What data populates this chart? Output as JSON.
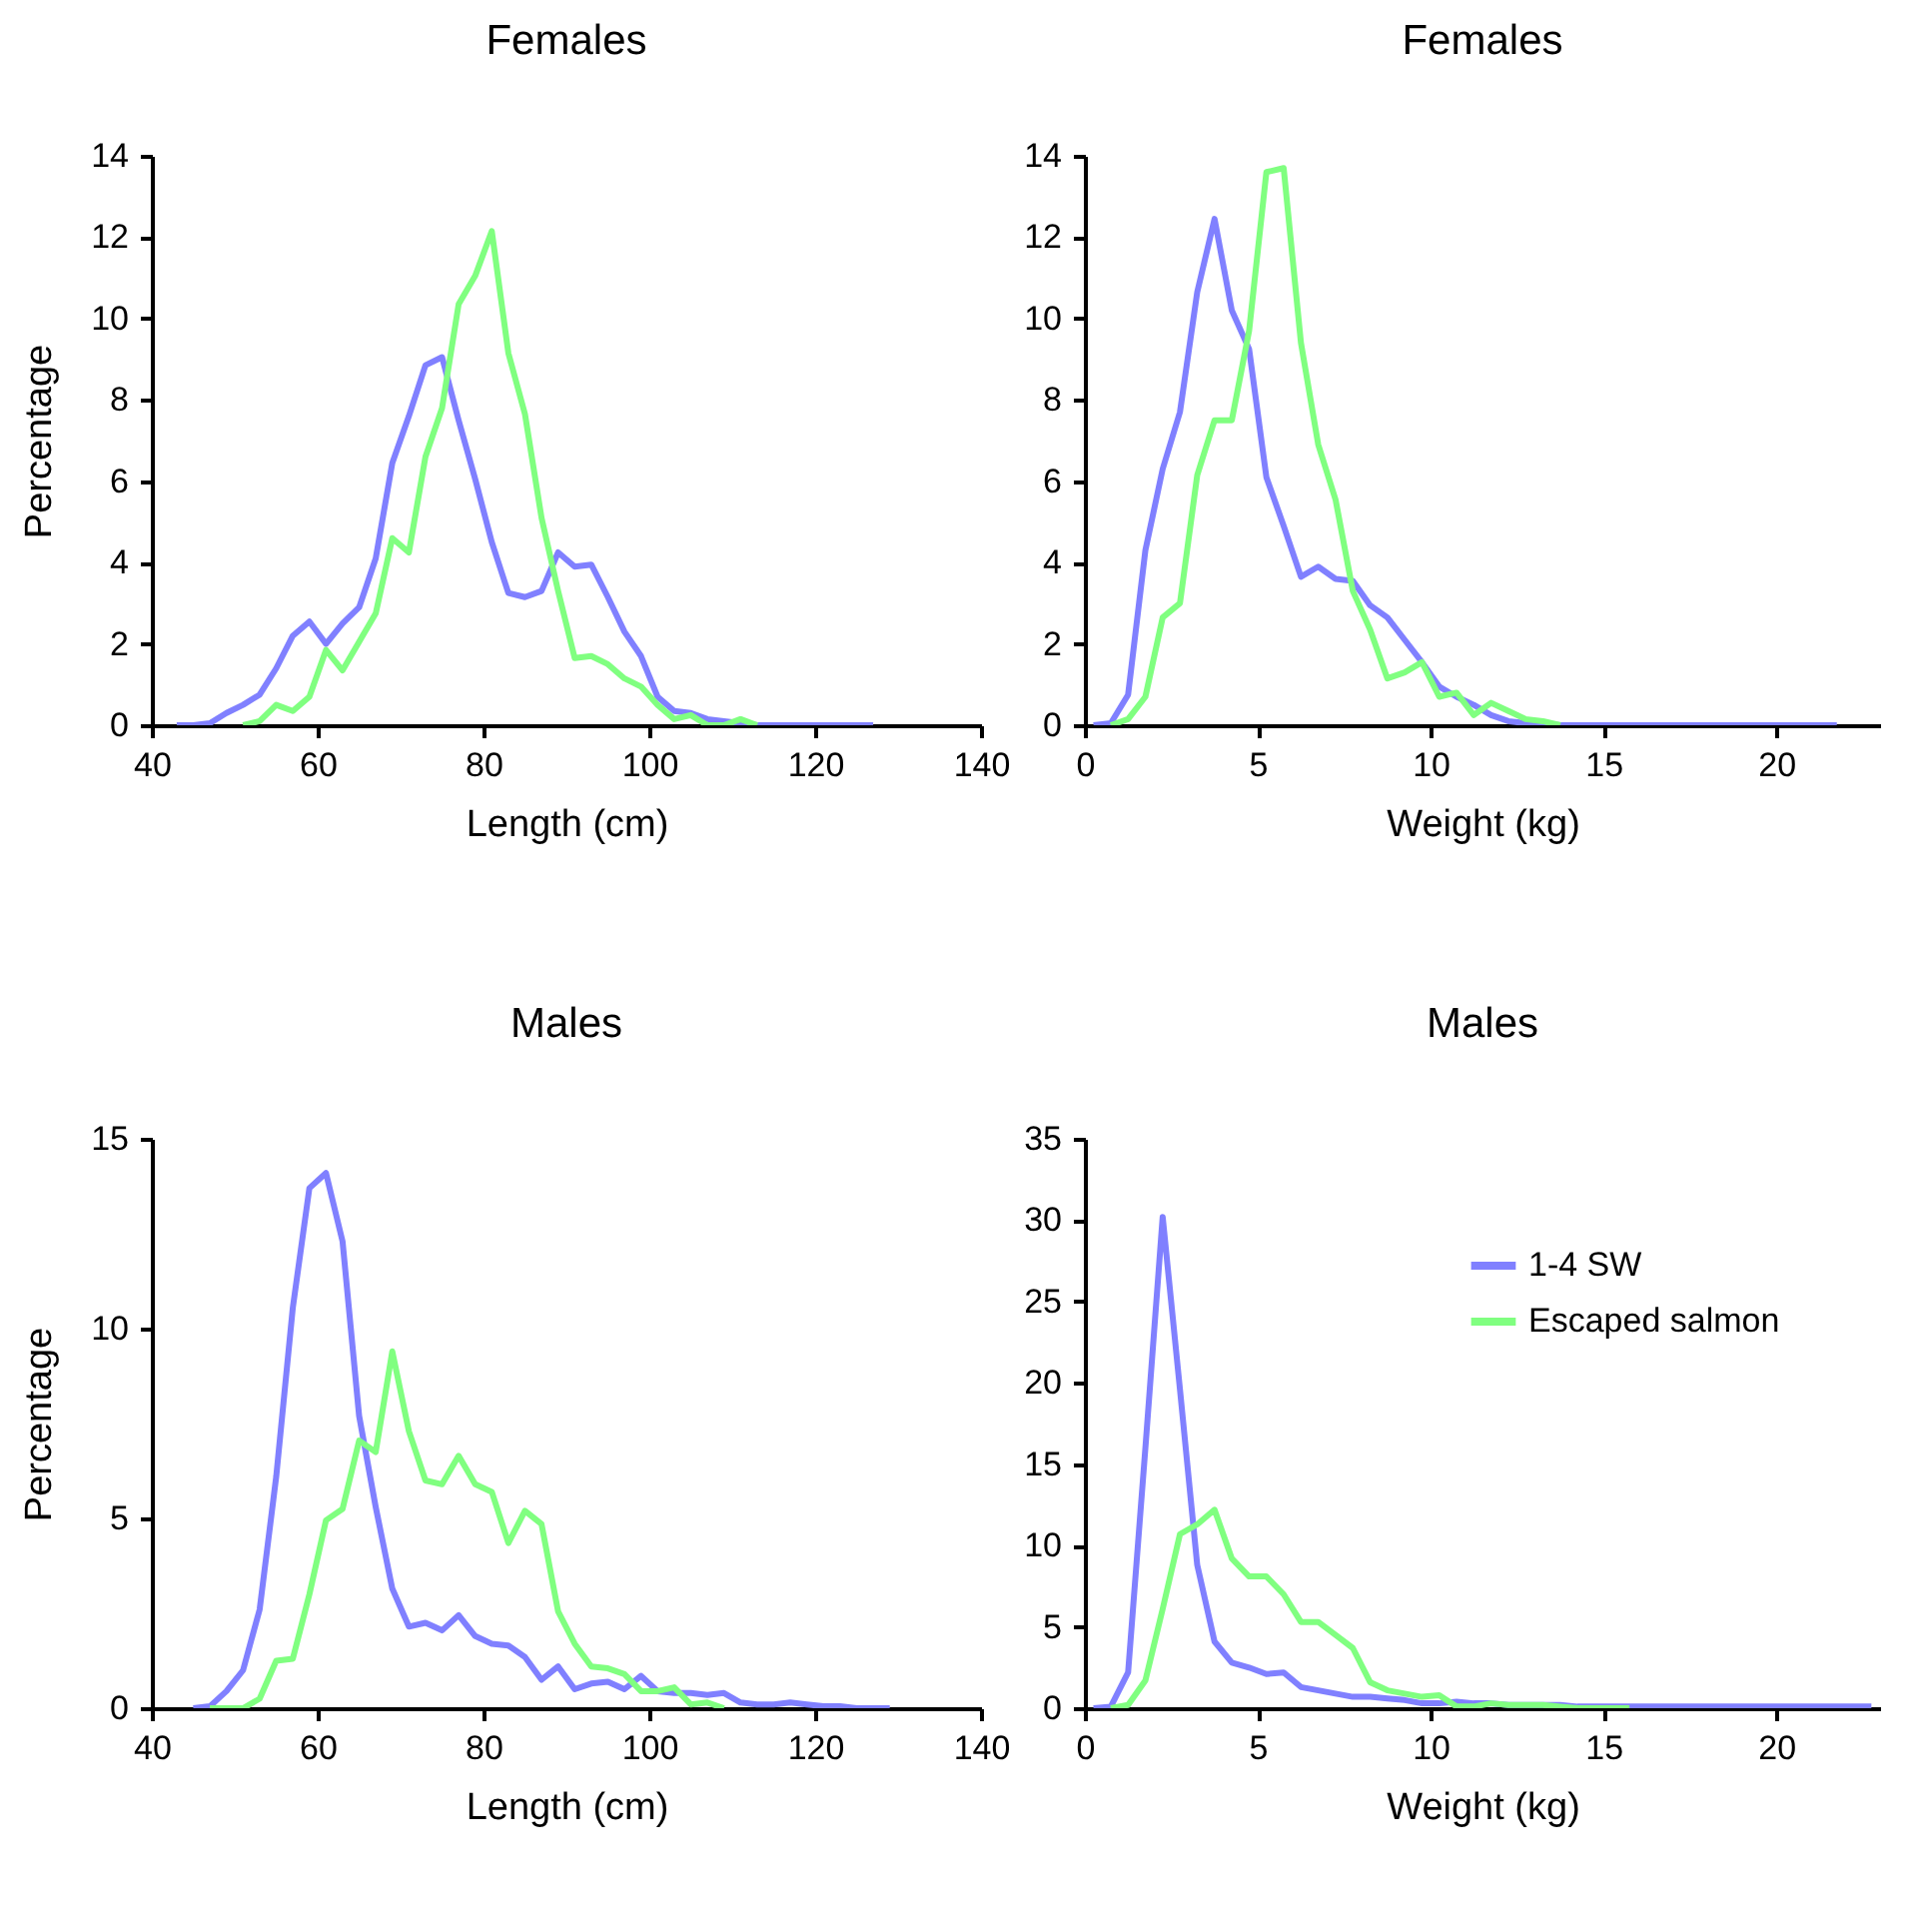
{
  "chart_data": [
    {
      "type": "line",
      "title": "Females",
      "xlabel": "Length (cm)",
      "ylabel": "Percentage",
      "xlim": [
        40,
        140
      ],
      "xticks": [
        40,
        60,
        80,
        100,
        120,
        140
      ],
      "ylim": [
        0,
        14
      ],
      "yticks": [
        0,
        2,
        4,
        6,
        8,
        10,
        12,
        14
      ],
      "series": [
        {
          "color": "#8080ff",
          "x": [
            43,
            45,
            47,
            49,
            51,
            53,
            55,
            57,
            59,
            61,
            63,
            65,
            67,
            69,
            71,
            73,
            75,
            77,
            79,
            81,
            83,
            85,
            87,
            89,
            91,
            93,
            95,
            97,
            99,
            101,
            103,
            105,
            107,
            109,
            111,
            113,
            115,
            117,
            119,
            121,
            123,
            125,
            127
          ],
          "values": [
            0,
            0,
            0.05,
            0.3,
            0.5,
            0.75,
            1.4,
            2.2,
            2.55,
            2.0,
            2.5,
            2.9,
            4.1,
            6.45,
            7.6,
            8.85,
            9.05,
            7.5,
            6.05,
            4.5,
            3.25,
            3.15,
            3.3,
            4.25,
            3.9,
            3.95,
            3.15,
            2.3,
            1.7,
            0.7,
            0.35,
            0.3,
            0.15,
            0.1,
            0.05,
            0,
            0,
            0,
            0,
            0,
            0,
            0,
            0
          ]
        },
        {
          "color": "#80ff80",
          "x": [
            51,
            53,
            55,
            57,
            59,
            61,
            63,
            65,
            67,
            69,
            71,
            73,
            75,
            77,
            79,
            81,
            83,
            85,
            87,
            89,
            91,
            93,
            95,
            97,
            99,
            101,
            103,
            105,
            107,
            109,
            111,
            113
          ],
          "values": [
            0,
            0.1,
            0.5,
            0.35,
            0.7,
            1.85,
            1.35,
            2.05,
            2.75,
            4.6,
            4.25,
            6.6,
            7.8,
            10.35,
            11.05,
            12.15,
            9.15,
            7.65,
            5.1,
            3.3,
            1.65,
            1.7,
            1.5,
            1.15,
            0.95,
            0.5,
            0.15,
            0.25,
            0,
            0,
            0.15,
            0
          ]
        }
      ]
    },
    {
      "type": "line",
      "title": "Females",
      "xlabel": "Weight (kg)",
      "xlim": [
        0,
        23
      ],
      "xticks": [
        0,
        5,
        10,
        15,
        20
      ],
      "ylim": [
        0,
        14
      ],
      "yticks": [
        0,
        2,
        4,
        6,
        8,
        10,
        12,
        14
      ],
      "series": [
        {
          "color": "#8080ff",
          "x": [
            0.25,
            0.75,
            1.25,
            1.75,
            2.25,
            2.75,
            3.25,
            3.75,
            4.25,
            4.75,
            5.25,
            5.75,
            6.25,
            6.75,
            7.25,
            7.75,
            8.25,
            8.75,
            9.25,
            9.75,
            10.25,
            10.75,
            11.25,
            11.75,
            12.25,
            12.75,
            13.25,
            13.75,
            14.25,
            14.75,
            15.25,
            15.75,
            16.25,
            16.75,
            17.25,
            17.75,
            18.25,
            18.75,
            19.25,
            19.75,
            20.25,
            20.75,
            21.25,
            21.75
          ],
          "values": [
            0,
            0.05,
            0.75,
            4.3,
            6.3,
            7.7,
            10.65,
            12.45,
            10.2,
            9.25,
            6.1,
            4.9,
            3.65,
            3.9,
            3.6,
            3.55,
            2.95,
            2.65,
            2.1,
            1.55,
            0.95,
            0.7,
            0.5,
            0.25,
            0.1,
            0.05,
            0.05,
            0,
            0,
            0,
            0,
            0,
            0,
            0,
            0,
            0,
            0,
            0,
            0,
            0,
            0,
            0,
            0,
            0
          ]
        },
        {
          "color": "#80ff80",
          "x": [
            0.75,
            1.25,
            1.75,
            2.25,
            2.75,
            3.25,
            3.75,
            4.25,
            4.75,
            5.25,
            5.75,
            6.25,
            6.75,
            7.25,
            7.75,
            8.25,
            8.75,
            9.25,
            9.75,
            10.25,
            10.75,
            11.25,
            11.75,
            12.25,
            12.75,
            13.25,
            13.75
          ],
          "values": [
            0,
            0.15,
            0.7,
            2.65,
            3.0,
            6.15,
            7.5,
            7.5,
            9.7,
            13.6,
            13.7,
            9.4,
            6.9,
            5.55,
            3.3,
            2.35,
            1.15,
            1.3,
            1.55,
            0.7,
            0.8,
            0.25,
            0.55,
            0.35,
            0.15,
            0.1,
            0
          ]
        }
      ]
    },
    {
      "type": "line",
      "title": "Males",
      "xlabel": "Length (cm)",
      "ylabel": "Percentage",
      "xlim": [
        40,
        140
      ],
      "xticks": [
        40,
        60,
        80,
        100,
        120,
        140
      ],
      "ylim": [
        0,
        15
      ],
      "yticks": [
        0,
        5,
        10,
        15
      ],
      "series": [
        {
          "color": "#8080ff",
          "x": [
            45,
            47,
            49,
            51,
            53,
            55,
            57,
            59,
            61,
            63,
            65,
            67,
            69,
            71,
            73,
            75,
            77,
            79,
            81,
            83,
            85,
            87,
            89,
            91,
            93,
            95,
            97,
            99,
            101,
            103,
            105,
            107,
            109,
            111,
            113,
            115,
            117,
            119,
            121,
            123,
            125,
            127,
            129
          ],
          "values": [
            0,
            0.05,
            0.45,
            1.0,
            2.6,
            6.1,
            10.55,
            13.7,
            14.1,
            12.3,
            7.7,
            5.3,
            3.15,
            2.15,
            2.25,
            2.05,
            2.45,
            1.9,
            1.7,
            1.65,
            1.35,
            0.75,
            1.1,
            0.5,
            0.65,
            0.7,
            0.5,
            0.85,
            0.45,
            0.4,
            0.4,
            0.35,
            0.4,
            0.15,
            0.1,
            0.1,
            0.15,
            0.1,
            0.05,
            0.05,
            0,
            0,
            0
          ]
        },
        {
          "color": "#80ff80",
          "x": [
            47,
            49,
            51,
            53,
            55,
            57,
            59,
            61,
            63,
            65,
            67,
            69,
            71,
            73,
            75,
            77,
            79,
            81,
            83,
            85,
            87,
            89,
            91,
            93,
            95,
            97,
            99,
            101,
            103,
            105,
            107,
            109
          ],
          "values": [
            0,
            0,
            0,
            0.25,
            1.25,
            1.3,
            3.0,
            4.95,
            5.25,
            7.05,
            6.75,
            9.4,
            7.3,
            6.0,
            5.9,
            6.65,
            5.9,
            5.7,
            4.35,
            5.2,
            4.85,
            2.55,
            1.7,
            1.1,
            1.05,
            0.9,
            0.45,
            0.45,
            0.55,
            0.1,
            0.15,
            0
          ]
        }
      ]
    },
    {
      "type": "line",
      "title": "Males",
      "xlabel": "Weight (kg)",
      "xlim": [
        0,
        23
      ],
      "xticks": [
        0,
        5,
        10,
        15,
        20
      ],
      "ylim": [
        0,
        35
      ],
      "yticks": [
        0,
        5,
        10,
        15,
        20,
        25,
        30,
        35
      ],
      "legend": "top right",
      "series": [
        {
          "name": "1-4 SW",
          "color": "#8080ff",
          "x": [
            0.25,
            0.75,
            1.25,
            1.75,
            2.25,
            2.75,
            3.25,
            3.75,
            4.25,
            4.75,
            5.25,
            5.75,
            6.25,
            6.75,
            7.25,
            7.75,
            8.25,
            8.75,
            9.25,
            9.75,
            10.25,
            10.75,
            11.25,
            11.75,
            12.25,
            12.75,
            13.25,
            13.75,
            14.25,
            14.75,
            15.25,
            15.75,
            16.25,
            16.75,
            17.25,
            17.75,
            18.25,
            18.75,
            19.25,
            19.75,
            20.25,
            20.75,
            21.25,
            21.75,
            22.25,
            22.75
          ],
          "values": [
            0,
            0.1,
            2.2,
            16,
            30.2,
            19.6,
            8.8,
            4.1,
            2.8,
            2.5,
            2.1,
            2.2,
            1.3,
            1.1,
            0.9,
            0.7,
            0.7,
            0.6,
            0.5,
            0.3,
            0.3,
            0.4,
            0.3,
            0.3,
            0.2,
            0.2,
            0.2,
            0.2,
            0.1,
            0.1,
            0.1,
            0.1,
            0.1,
            0.1,
            0.1,
            0.1,
            0.1,
            0.1,
            0.1,
            0.1,
            0.1,
            0.1,
            0.1,
            0.1,
            0.1,
            0.1
          ]
        },
        {
          "name": "Escaped salmon",
          "color": "#80ff80",
          "x": [
            0.75,
            1.25,
            1.75,
            2.25,
            2.75,
            3.25,
            3.75,
            4.25,
            4.75,
            5.25,
            5.75,
            6.25,
            6.75,
            7.25,
            7.75,
            8.25,
            8.75,
            9.25,
            9.75,
            10.25,
            10.75,
            11.25,
            11.75,
            12.25,
            12.75,
            13.25,
            13.75,
            14.25,
            14.75,
            15.25,
            15.75
          ],
          "values": [
            0,
            0.2,
            1.7,
            6.1,
            10.7,
            11.3,
            12.2,
            9.2,
            8.1,
            8.1,
            7.0,
            5.3,
            5.3,
            4.5,
            3.7,
            1.6,
            1.1,
            0.9,
            0.7,
            0.8,
            0.1,
            0.1,
            0.3,
            0.2,
            0.2,
            0.2,
            0.1,
            0,
            0,
            0,
            0
          ]
        }
      ]
    }
  ]
}
